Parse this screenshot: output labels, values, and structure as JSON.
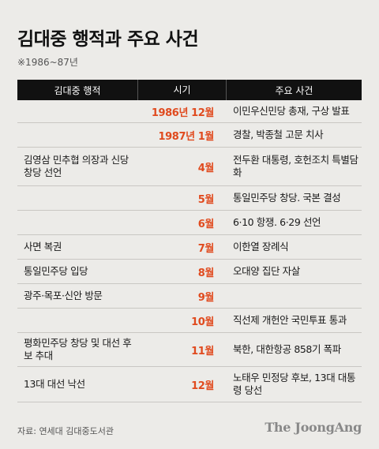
{
  "title": "김대중 행적과 주요 사건",
  "subtitle": "※1986~87년",
  "table": {
    "headers": [
      "김대중 행적",
      "시기",
      "주요 사건"
    ],
    "rows": [
      {
        "action": "",
        "period": "1986년 12월",
        "event": "이민우신민당 총재, 구상 발표"
      },
      {
        "action": "",
        "period": "1987년 1월",
        "event": "경찰, 박종철 고문 치사"
      },
      {
        "action": "김영삼 민추협 의장과 신당 창당 선언",
        "period": "4월",
        "event": "전두환 대통령, 호헌조치 특별담화"
      },
      {
        "action": "",
        "period": "5월",
        "event": "통일민주당 창당. 국본 결성"
      },
      {
        "action": "",
        "period": "6월",
        "event": "6·10 항쟁. 6·29 선언"
      },
      {
        "action": "사면 복권",
        "period": "7월",
        "event": "이한열 장례식"
      },
      {
        "action": "통일민주당 입당",
        "period": "8월",
        "event": "오대양 집단 자살"
      },
      {
        "action": "광주·목포·신안 방문",
        "period": "9월",
        "event": ""
      },
      {
        "action": "",
        "period": "10월",
        "event": "직선제 개헌안 국민투표 통과"
      },
      {
        "action": "평화민주당 창당 및 대선 후보 추대",
        "period": "11월",
        "event": "북한, 대한항공 858기 폭파"
      },
      {
        "action": "13대 대선 낙선",
        "period": "12월",
        "event": "노태우 민정당 후보, 13대 대통령 당선"
      }
    ]
  },
  "source": "자료: 연세대 김대중도서관",
  "logo": "The JoongAng",
  "colors": {
    "accent": "#e04a1e",
    "header_bg": "#111111",
    "page_bg": "#ecebe8"
  }
}
